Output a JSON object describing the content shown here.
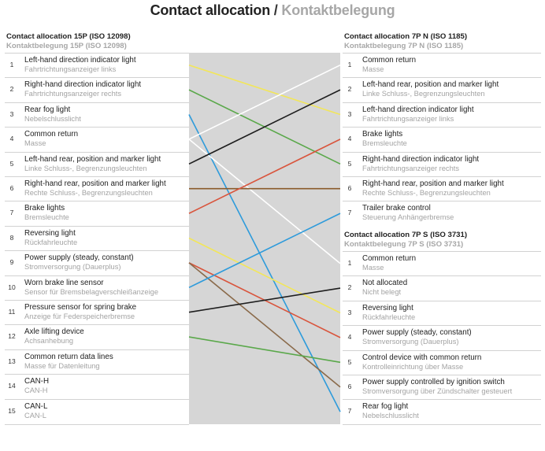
{
  "title": {
    "en": "Contact allocation",
    "separator": " / ",
    "de": "Kontaktbelegung"
  },
  "left": {
    "heading_en": "Contact allocation 15P (ISO 12098)",
    "heading_de": "Kontaktbelegung 15P (ISO 12098)",
    "pins": [
      {
        "num": "1",
        "en": "Left-hand direction indicator light",
        "de": "Fahrtrichtungsanzeiger links"
      },
      {
        "num": "2",
        "en": "Right-hand direction indicator light",
        "de": "Fahrtrichtungsanzeiger rechts"
      },
      {
        "num": "3",
        "en": "Rear fog light",
        "de": "Nebelschlusslicht"
      },
      {
        "num": "4",
        "en": "Common return",
        "de": "Masse"
      },
      {
        "num": "5",
        "en": "Left-hand rear, position and marker light",
        "de": "Linke Schluss-, Begrenzungsleuchten"
      },
      {
        "num": "6",
        "en": "Right-hand rear, position and marker light",
        "de": "Rechte Schluss-, Begrenzungsleuchten"
      },
      {
        "num": "7",
        "en": "Brake lights",
        "de": "Bremsleuchte"
      },
      {
        "num": "8",
        "en": "Reversing light",
        "de": "Rückfahrleuchte"
      },
      {
        "num": "9",
        "en": "Power supply (steady, constant)",
        "de": "Stromversorgung (Dauerplus)"
      },
      {
        "num": "10",
        "en": "Worn brake line sensor",
        "de": "Sensor für Bremsbelagverschleißanzeige"
      },
      {
        "num": "11",
        "en": "Pressure sensor for spring brake",
        "de": "Anzeige für Federspeicherbremse"
      },
      {
        "num": "12",
        "en": "Axle lifting device",
        "de": "Achsanhebung"
      },
      {
        "num": "13",
        "en": "Common return data lines",
        "de": "Masse für Datenleitung"
      },
      {
        "num": "14",
        "en": "CAN-H",
        "de": "CAN-H"
      },
      {
        "num": "15",
        "en": "CAN-L",
        "de": "CAN-L"
      }
    ]
  },
  "right_n": {
    "heading_en": "Contact allocation 7P N (ISO 1185)",
    "heading_de": "Kontaktbelegung 7P N (ISO 1185)",
    "pins": [
      {
        "num": "1",
        "en": "Common return",
        "de": "Masse"
      },
      {
        "num": "2",
        "en": "Left-hand rear, position and marker light",
        "de": "Linke Schluss-, Begrenzungsleuchten"
      },
      {
        "num": "3",
        "en": "Left-hand direction indicator light",
        "de": "Fahrtrichtungsanzeiger links"
      },
      {
        "num": "4",
        "en": "Brake lights",
        "de": "Bremsleuchte"
      },
      {
        "num": "5",
        "en": "Right-hand direction indicator light",
        "de": "Fahrtrichtungsanzeiger rechts"
      },
      {
        "num": "6",
        "en": "Right-hand rear, position and marker light",
        "de": "Rechte Schluss-, Begrenzungsleuchten"
      },
      {
        "num": "7",
        "en": "Trailer brake control",
        "de": "Steuerung Anhängerbremse"
      }
    ]
  },
  "right_s": {
    "heading_en": "Contact allocation 7P S (ISO 3731)",
    "heading_de": "Kontaktbelegung 7P S (ISO 3731)",
    "pins": [
      {
        "num": "1",
        "en": "Common return",
        "de": "Masse"
      },
      {
        "num": "2",
        "en": "Not allocated",
        "de": "Nicht belegt"
      },
      {
        "num": "3",
        "en": "Reversing light",
        "de": "Rückfahrleuchte"
      },
      {
        "num": "4",
        "en": "Power supply (steady, constant)",
        "de": "Stromversorgung (Dauerplus)"
      },
      {
        "num": "5",
        "en": "Control device with common return",
        "de": "Kontrolleinrichtung über Masse"
      },
      {
        "num": "6",
        "en": "Power supply controlled by ignition switch",
        "de": "Stromversorgung über Zündschalter gesteuert"
      },
      {
        "num": "7",
        "en": "Rear fog light",
        "de": "Nebelschlusslicht"
      }
    ]
  },
  "wires": [
    {
      "from": 1,
      "group": "n",
      "to": 3,
      "color": "#f2e65a"
    },
    {
      "from": 2,
      "group": "n",
      "to": 5,
      "color": "#5aa84a"
    },
    {
      "from": 3,
      "group": "s",
      "to": 7,
      "color": "#2e9bdb"
    },
    {
      "from": 4,
      "group": "n",
      "to": 1,
      "color": "#ffffff"
    },
    {
      "from": 4,
      "group": "s",
      "to": 1,
      "color": "#ffffff"
    },
    {
      "from": 5,
      "group": "n",
      "to": 2,
      "color": "#1e1e1e"
    },
    {
      "from": 6,
      "group": "n",
      "to": 6,
      "color": "#8a5a2b"
    },
    {
      "from": 7,
      "group": "n",
      "to": 4,
      "color": "#d9553d"
    },
    {
      "from": 8,
      "group": "s",
      "to": 3,
      "color": "#f2e65a"
    },
    {
      "from": 9,
      "group": "s",
      "to": 4,
      "color": "#d9553d"
    },
    {
      "from": 9,
      "group": "s",
      "to": 6,
      "color": "#8a6a4a"
    },
    {
      "from": 10,
      "group": "n",
      "to": 7,
      "color": "#2e9bdb"
    },
    {
      "from": 11,
      "group": "s",
      "to": 2,
      "color": "#1e1e1e"
    },
    {
      "from": 12,
      "group": "s",
      "to": 5,
      "color": "#5aa84a"
    }
  ]
}
